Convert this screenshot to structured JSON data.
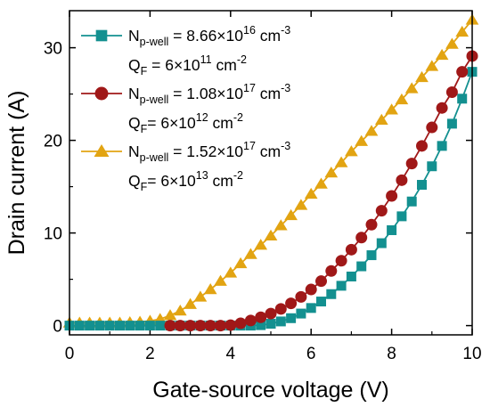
{
  "chart_data": {
    "type": "line",
    "xlabel": "Gate-source voltage (V)",
    "ylabel": "Drain current (A)",
    "xlim": [
      0,
      10
    ],
    "ylim": [
      -1,
      34
    ],
    "xticks": [
      0,
      2,
      4,
      6,
      8,
      10
    ],
    "yticks": [
      0,
      10,
      20,
      30
    ],
    "grid": false,
    "legend_position": "top-left",
    "series": [
      {
        "marker": "square",
        "color": "#139090",
        "legend_line1": {
          "main": "N",
          "sub": "p-well",
          "text": " = 8.66×10",
          "sup": "16",
          "tail": " cm",
          "tail_sup": "-3"
        },
        "legend_line2": {
          "main": "Q",
          "sub": "F",
          "text": " = 6×10",
          "sup": "11",
          "tail": " cm",
          "tail_sup": "-2"
        },
        "x": [
          0,
          0.25,
          0.5,
          0.75,
          1.0,
          1.25,
          1.5,
          1.75,
          2.0,
          2.25,
          2.5,
          2.75,
          3.0,
          3.25,
          3.5,
          3.75,
          4.0,
          4.25,
          4.5,
          4.75,
          5.0,
          5.25,
          5.5,
          5.75,
          6.0,
          6.25,
          6.5,
          6.75,
          7.0,
          7.25,
          7.5,
          7.75,
          8.0,
          8.25,
          8.5,
          8.75,
          9.0,
          9.25,
          9.5,
          9.75,
          10.0
        ],
        "y": [
          0,
          0,
          0,
          0,
          0,
          0,
          0,
          0,
          0,
          0,
          0,
          0,
          0,
          0,
          0,
          0,
          0,
          0,
          0,
          0.05,
          0.2,
          0.45,
          0.8,
          1.3,
          1.9,
          2.6,
          3.4,
          4.3,
          5.3,
          6.4,
          7.6,
          8.9,
          10.3,
          11.8,
          13.4,
          15.2,
          17.2,
          19.4,
          21.8,
          24.5,
          27.4
        ]
      },
      {
        "marker": "circle",
        "color": "#a01818",
        "legend_line1": {
          "main": "N",
          "sub": "p-well",
          "text": " = 1.08×10",
          "sup": "17",
          "tail": " cm",
          "tail_sup": "-3"
        },
        "legend_line2": {
          "main": "Q",
          "sub": "F",
          "text": "= 6×10",
          "sup": "12",
          "tail": " cm",
          "tail_sup": "-2"
        },
        "x": [
          2.5,
          2.75,
          3.0,
          3.25,
          3.5,
          3.75,
          4.0,
          4.25,
          4.5,
          4.75,
          5.0,
          5.25,
          5.5,
          5.75,
          6.0,
          6.25,
          6.5,
          6.75,
          7.0,
          7.25,
          7.5,
          7.75,
          8.0,
          8.25,
          8.5,
          8.75,
          9.0,
          9.25,
          9.5,
          9.75,
          10.0
        ],
        "y": [
          0,
          0,
          0,
          0,
          0,
          0,
          0.05,
          0.25,
          0.55,
          0.9,
          1.3,
          1.8,
          2.4,
          3.1,
          3.9,
          4.8,
          5.9,
          7.0,
          8.2,
          9.5,
          10.9,
          12.4,
          14.0,
          15.7,
          17.5,
          19.4,
          21.4,
          23.5,
          25.2,
          27.4,
          29.1
        ]
      },
      {
        "marker": "triangle",
        "color": "#e2a412",
        "legend_line1": {
          "main": "N",
          "sub": "p-well",
          "text": " = 1.52×10",
          "sup": "17",
          "tail": " cm",
          "tail_sup": "-3"
        },
        "legend_line2": {
          "main": "Q",
          "sub": "F",
          "text": "= 6×10",
          "sup": "13",
          "tail": " cm",
          "tail_sup": "-2"
        },
        "x": [
          0,
          0.25,
          0.5,
          0.75,
          1.0,
          1.25,
          1.5,
          1.75,
          2.0,
          2.25,
          2.5,
          2.75,
          3.0,
          3.25,
          3.5,
          3.75,
          4.0,
          4.25,
          4.5,
          4.75,
          5.0,
          5.25,
          5.5,
          5.75,
          6.0,
          6.25,
          6.5,
          6.75,
          7.0,
          7.25,
          7.5,
          7.75,
          8.0,
          8.25,
          8.5,
          8.75,
          9.0,
          9.25,
          9.5,
          9.75,
          10.0
        ],
        "y": [
          0.3,
          0.3,
          0.3,
          0.3,
          0.3,
          0.3,
          0.35,
          0.4,
          0.5,
          0.7,
          1.1,
          1.6,
          2.3,
          3.1,
          3.9,
          4.8,
          5.7,
          6.7,
          7.7,
          8.7,
          9.7,
          10.8,
          11.9,
          13.0,
          14.2,
          15.3,
          16.5,
          17.6,
          18.8,
          19.9,
          21.0,
          22.2,
          23.3,
          24.4,
          25.6,
          26.8,
          28.0,
          29.2,
          30.4,
          31.7,
          33.0
        ]
      }
    ]
  }
}
